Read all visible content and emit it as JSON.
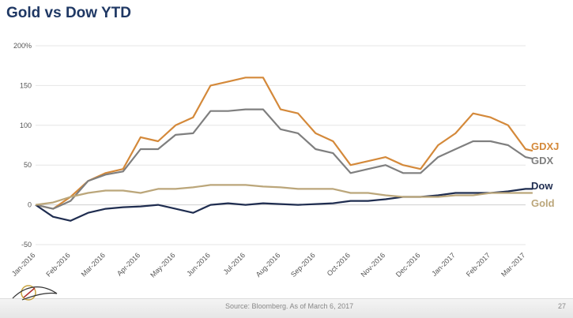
{
  "title": "Gold vs Dow YTD",
  "footer": {
    "source": "Source: Bloomberg. As of March 6, 2017",
    "page": "27"
  },
  "chart_data": {
    "type": "line",
    "title": "Gold vs Dow YTD",
    "xlabel": "",
    "ylabel": "",
    "ylim": [
      -50,
      200
    ],
    "yticks": [
      -50,
      0,
      50,
      100,
      150,
      200
    ],
    "ytick_labels": [
      "-50",
      "0",
      "50",
      "100",
      "150",
      "200%"
    ],
    "grid": true,
    "legend": "right",
    "categories": [
      "Jan-2016",
      "Feb-2016",
      "Mar-2016",
      "Apr-2016",
      "May-2016",
      "Jun-2016",
      "Jul-2016",
      "Aug-2016",
      "Sep-2016",
      "Oct-2016",
      "Nov-2016",
      "Dec-2016",
      "Jan-2017",
      "Feb-2017",
      "Mar-2017"
    ],
    "x": [
      0,
      0.5,
      1,
      1.5,
      2,
      2.5,
      3,
      3.5,
      4,
      4.5,
      5,
      5.5,
      6,
      6.5,
      7,
      7.5,
      8,
      8.5,
      9,
      9.5,
      10,
      10.5,
      11,
      11.5,
      12,
      12.5,
      13,
      13.5,
      14,
      14.2
    ],
    "series": [
      {
        "name": "GDXJ",
        "color": "#d4893a",
        "values": [
          0,
          -5,
          10,
          30,
          40,
          45,
          85,
          80,
          100,
          110,
          150,
          155,
          160,
          160,
          120,
          115,
          90,
          80,
          50,
          55,
          60,
          50,
          45,
          75,
          90,
          115,
          110,
          100,
          70,
          68
        ]
      },
      {
        "name": "GDX",
        "color": "#7f7f7f",
        "values": [
          0,
          -5,
          5,
          30,
          38,
          42,
          70,
          70,
          88,
          90,
          118,
          118,
          120,
          120,
          95,
          90,
          70,
          65,
          40,
          45,
          50,
          40,
          40,
          60,
          70,
          80,
          80,
          75,
          60,
          58
        ]
      },
      {
        "name": "Dow",
        "color": "#1f2d50",
        "values": [
          0,
          -15,
          -20,
          -10,
          -5,
          -3,
          -2,
          0,
          -5,
          -10,
          0,
          2,
          0,
          2,
          1,
          0,
          1,
          2,
          5,
          5,
          7,
          10,
          10,
          12,
          15,
          15,
          15,
          17,
          20,
          20
        ]
      },
      {
        "name": "Gold",
        "color": "#bba67a",
        "values": [
          0,
          3,
          10,
          15,
          18,
          18,
          15,
          20,
          20,
          22,
          25,
          25,
          25,
          23,
          22,
          20,
          20,
          20,
          15,
          15,
          12,
          10,
          10,
          10,
          12,
          12,
          15,
          15,
          15,
          15
        ]
      }
    ]
  }
}
